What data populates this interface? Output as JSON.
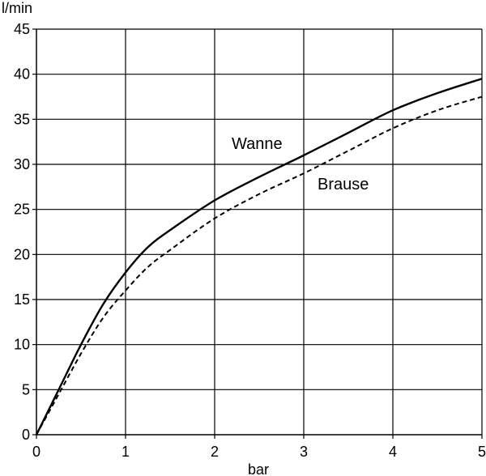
{
  "chart_data": {
    "type": "line",
    "title": "",
    "xlabel": "bar",
    "ylabel": "l/min",
    "xlim": [
      0,
      5
    ],
    "ylim": [
      0,
      45
    ],
    "xticks": [
      0,
      1,
      2,
      3,
      4,
      5
    ],
    "yticks": [
      0,
      5,
      10,
      15,
      20,
      25,
      30,
      35,
      40,
      45
    ],
    "grid": true,
    "series": [
      {
        "name": "Wanne",
        "line_style": "solid",
        "color": "#000000",
        "x": [
          0,
          0.25,
          0.5,
          0.75,
          1.0,
          1.25,
          1.5,
          2.0,
          2.5,
          3.0,
          3.5,
          4.0,
          4.5,
          5.0
        ],
        "y": [
          0,
          5,
          10,
          14.5,
          18,
          20.8,
          22.7,
          26,
          28.6,
          31,
          33.5,
          36,
          37.9,
          39.5
        ]
      },
      {
        "name": "Brause",
        "line_style": "dashed",
        "color": "#000000",
        "x": [
          0,
          0.25,
          0.5,
          0.75,
          1.0,
          1.25,
          1.5,
          2.0,
          2.5,
          3.0,
          3.5,
          4.0,
          4.5,
          5.0
        ],
        "y": [
          0,
          4.5,
          9,
          13,
          16,
          18.6,
          20.5,
          24,
          26.7,
          29,
          31.5,
          34,
          36,
          37.5
        ]
      }
    ]
  }
}
